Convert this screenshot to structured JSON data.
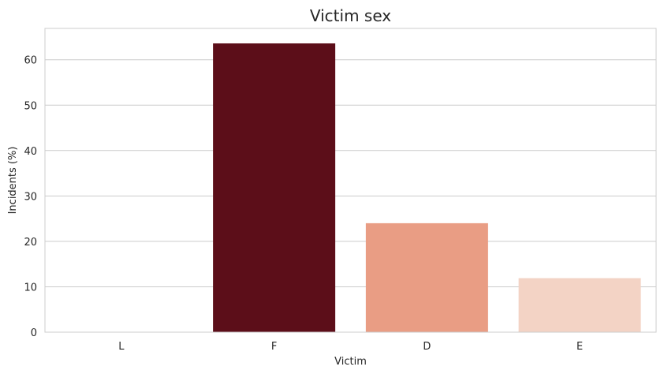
{
  "chart_data": {
    "type": "bar",
    "title": "Victim sex",
    "xlabel": "Victim",
    "ylabel": "Incidents (%)",
    "categories": [
      "L",
      "F",
      "D",
      "E"
    ],
    "values": [
      0,
      63.6,
      24.0,
      11.9
    ],
    "colors": [
      "#fff5f0",
      "#5c0e19",
      "#e99d84",
      "#f3d3c5"
    ],
    "ylim": [
      0,
      66.9
    ],
    "yticks": [
      0,
      10,
      20,
      30,
      40,
      50,
      60
    ],
    "grid": true,
    "legend": "none"
  }
}
